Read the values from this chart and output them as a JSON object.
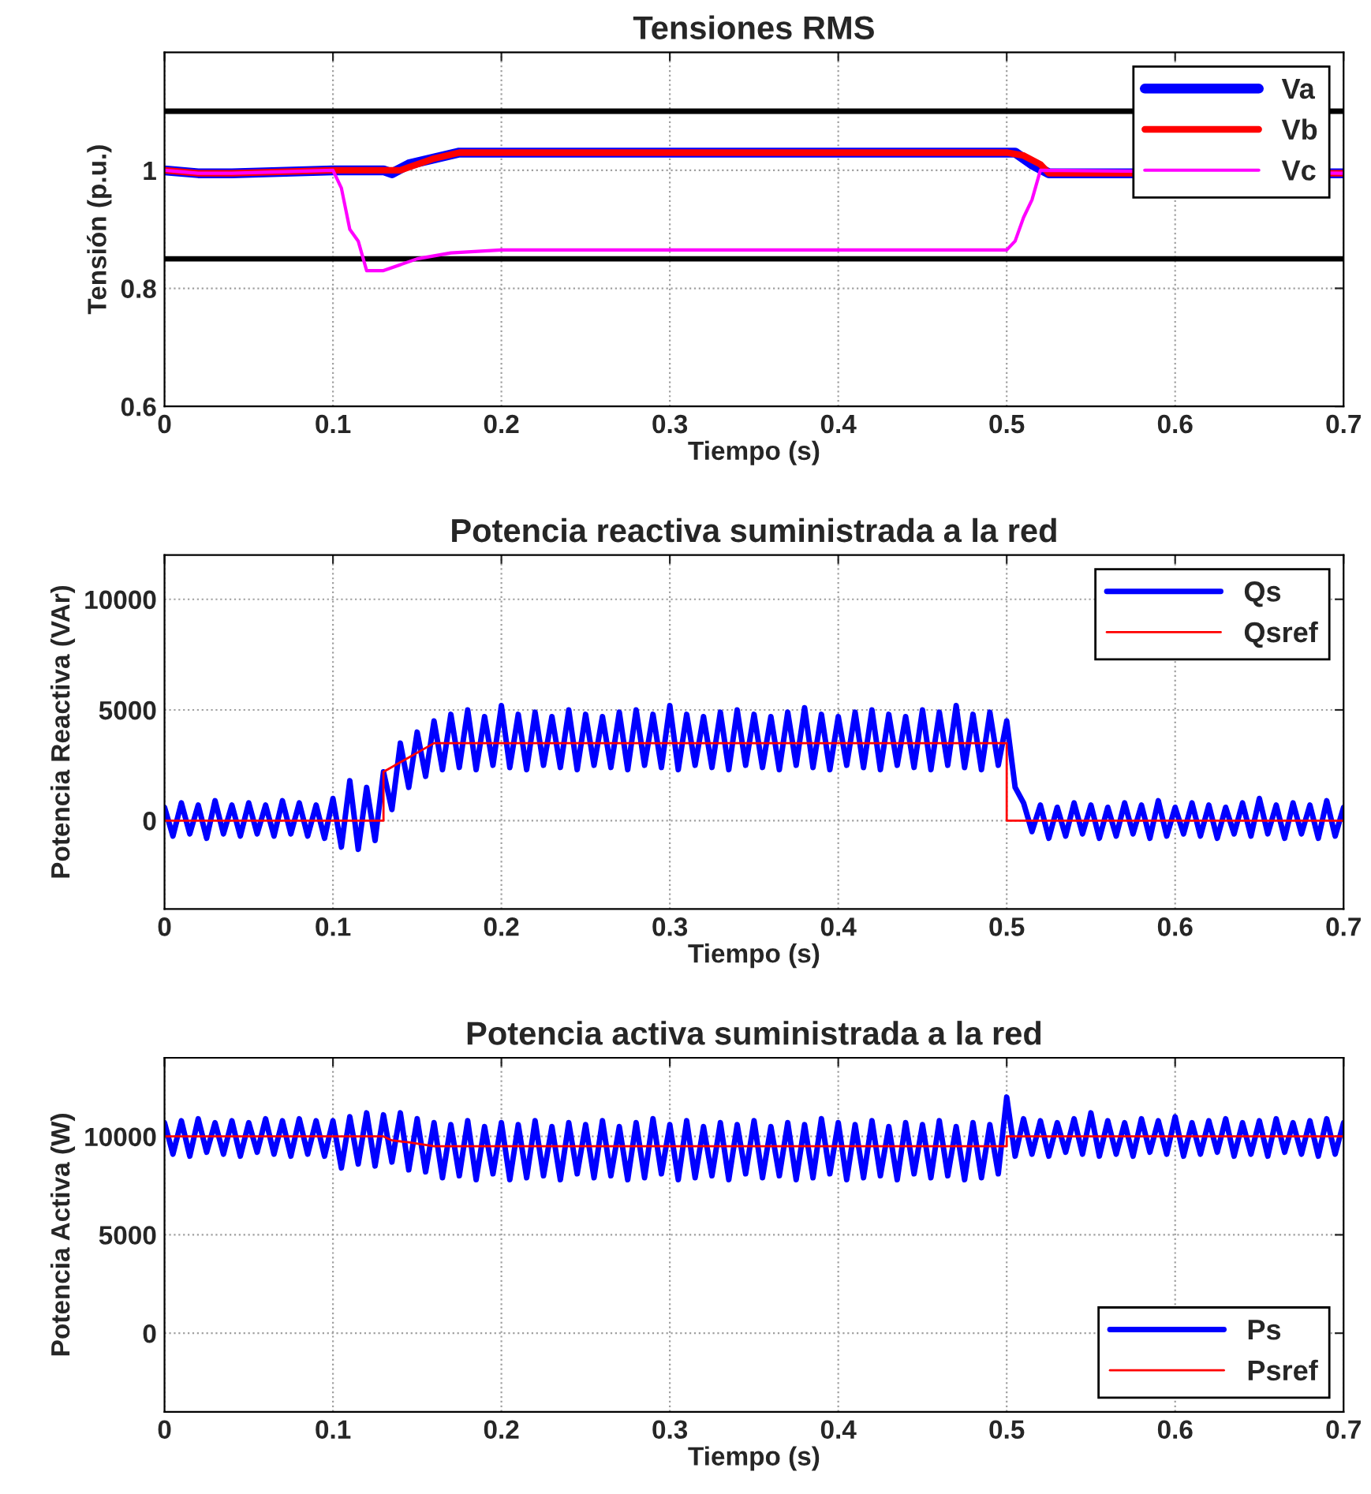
{
  "chart_data": [
    {
      "type": "line",
      "title": "Tensiones RMS",
      "xlabel": "Tiempo (s)",
      "ylabel": "Tensión (p.u.)",
      "xlim": [
        0,
        0.7
      ],
      "xticks": [
        0,
        0.1,
        0.2,
        0.3,
        0.4,
        0.5,
        0.6,
        0.7
      ],
      "ylim": [
        0.6,
        1.2
      ],
      "yticks": [
        0.6,
        0.8,
        1
      ],
      "grid": true,
      "legend": "top right",
      "line_style": "solid",
      "marker": "none",
      "ref_lines": [
        {
          "axis": "y",
          "value": 1.1,
          "color": "#000000"
        },
        {
          "axis": "y",
          "value": 0.85,
          "color": "#000000"
        }
      ],
      "series": [
        {
          "name": "Va",
          "color": "#0000ff",
          "x": [
            0,
            0.02,
            0.04,
            0.1,
            0.13,
            0.135,
            0.145,
            0.16,
            0.175,
            0.5,
            0.505,
            0.515,
            0.525,
            0.7
          ],
          "values": [
            1.0,
            0.995,
            0.995,
            1.0,
            1.0,
            0.995,
            1.01,
            1.02,
            1.03,
            1.03,
            1.03,
            1.01,
            0.995,
            0.995
          ]
        },
        {
          "name": "Vb",
          "color": "#ff0000",
          "x": [
            0,
            0.02,
            0.04,
            0.1,
            0.13,
            0.14,
            0.15,
            0.16,
            0.175,
            0.5,
            0.51,
            0.52,
            0.525,
            0.7
          ],
          "values": [
            1.0,
            0.995,
            0.995,
            1.0,
            1.0,
            1.0,
            1.01,
            1.02,
            1.03,
            1.03,
            1.025,
            1.01,
            0.995,
            0.995
          ]
        },
        {
          "name": "Vc",
          "color": "#ff00ff",
          "x": [
            0,
            0.02,
            0.04,
            0.1,
            0.105,
            0.11,
            0.115,
            0.12,
            0.13,
            0.15,
            0.17,
            0.2,
            0.5,
            0.505,
            0.51,
            0.515,
            0.52,
            0.7
          ],
          "values": [
            1.0,
            0.995,
            0.995,
            1.0,
            0.97,
            0.9,
            0.88,
            0.83,
            0.83,
            0.85,
            0.86,
            0.865,
            0.865,
            0.88,
            0.92,
            0.95,
            1.0,
            0.995
          ]
        }
      ]
    },
    {
      "type": "line",
      "title": "Potencia reactiva suministrada a la red",
      "xlabel": "Tiempo (s)",
      "ylabel": "Potencia Reactiva (VAr)",
      "xlim": [
        0,
        0.7
      ],
      "xticks": [
        0,
        0.1,
        0.2,
        0.3,
        0.4,
        0.5,
        0.6,
        0.7
      ],
      "ylim": [
        -4000,
        12000
      ],
      "yticks": [
        0,
        5000,
        10000
      ],
      "grid": true,
      "legend": "top right",
      "line_style": "solid",
      "marker": "none",
      "series": [
        {
          "name": "Qs",
          "color": "#0000ff",
          "x": [
            0,
            0.005,
            0.01,
            0.015,
            0.02,
            0.025,
            0.03,
            0.035,
            0.04,
            0.045,
            0.05,
            0.055,
            0.06,
            0.065,
            0.07,
            0.075,
            0.08,
            0.085,
            0.09,
            0.095,
            0.1,
            0.105,
            0.11,
            0.115,
            0.12,
            0.125,
            0.13,
            0.135,
            0.14,
            0.145,
            0.15,
            0.155,
            0.16,
            0.165,
            0.17,
            0.175,
            0.18,
            0.185,
            0.19,
            0.195,
            0.2,
            0.205,
            0.21,
            0.215,
            0.22,
            0.225,
            0.23,
            0.235,
            0.24,
            0.245,
            0.25,
            0.255,
            0.26,
            0.265,
            0.27,
            0.275,
            0.28,
            0.285,
            0.29,
            0.295,
            0.3,
            0.305,
            0.31,
            0.315,
            0.32,
            0.325,
            0.33,
            0.335,
            0.34,
            0.345,
            0.35,
            0.355,
            0.36,
            0.365,
            0.37,
            0.375,
            0.38,
            0.385,
            0.39,
            0.395,
            0.4,
            0.405,
            0.41,
            0.415,
            0.42,
            0.425,
            0.43,
            0.435,
            0.44,
            0.445,
            0.45,
            0.455,
            0.46,
            0.465,
            0.47,
            0.475,
            0.48,
            0.485,
            0.49,
            0.495,
            0.5,
            0.505,
            0.51,
            0.515,
            0.52,
            0.525,
            0.53,
            0.535,
            0.54,
            0.545,
            0.55,
            0.555,
            0.56,
            0.565,
            0.57,
            0.575,
            0.58,
            0.585,
            0.59,
            0.595,
            0.6,
            0.605,
            0.61,
            0.615,
            0.62,
            0.625,
            0.63,
            0.635,
            0.64,
            0.645,
            0.65,
            0.655,
            0.66,
            0.665,
            0.67,
            0.675,
            0.68,
            0.685,
            0.69,
            0.695,
            0.7
          ],
          "values": [
            600,
            -700,
            800,
            -600,
            700,
            -800,
            900,
            -600,
            700,
            -700,
            800,
            -600,
            700,
            -700,
            900,
            -600,
            800,
            -700,
            700,
            -800,
            1000,
            -1200,
            1800,
            -1300,
            1500,
            -900,
            2200,
            500,
            3500,
            1500,
            4000,
            2000,
            4500,
            2300,
            4800,
            2400,
            5000,
            2300,
            4700,
            2500,
            5200,
            2400,
            4800,
            2300,
            4900,
            2500,
            4700,
            2400,
            5000,
            2300,
            4800,
            2500,
            4700,
            2400,
            4900,
            2300,
            5000,
            2500,
            4800,
            2400,
            5200,
            2300,
            4800,
            2500,
            4700,
            2400,
            4900,
            2300,
            5000,
            2500,
            4800,
            2400,
            4700,
            2300,
            4900,
            2500,
            5100,
            2400,
            4800,
            2300,
            4700,
            2500,
            4900,
            2400,
            5000,
            2300,
            4800,
            2500,
            4700,
            2400,
            5000,
            2300,
            4900,
            2500,
            5200,
            2400,
            4800,
            2300,
            4900,
            2500,
            4500,
            1500,
            800,
            -500,
            700,
            -800,
            600,
            -700,
            800,
            -600,
            700,
            -800,
            600,
            -700,
            800,
            -600,
            700,
            -800,
            900,
            -700,
            600,
            -600,
            800,
            -700,
            700,
            -800,
            600,
            -600,
            800,
            -700,
            1000,
            -600,
            700,
            -800,
            800,
            -600,
            700,
            -800,
            900,
            -700,
            600
          ]
        },
        {
          "name": "Qsref",
          "color": "#ff0000",
          "x": [
            0,
            0.13,
            0.13,
            0.16,
            0.5,
            0.5,
            0.7
          ],
          "values": [
            0,
            0,
            2200,
            3500,
            3500,
            0,
            0
          ]
        }
      ]
    },
    {
      "type": "line",
      "title": "Potencia activa suministrada a la red",
      "xlabel": "Tiempo (s)",
      "ylabel": "Potencia Activa (W)",
      "xlim": [
        0,
        0.7
      ],
      "xticks": [
        0,
        0.1,
        0.2,
        0.3,
        0.4,
        0.5,
        0.6,
        0.7
      ],
      "ylim": [
        -4000,
        14000
      ],
      "yticks": [
        0,
        5000,
        10000
      ],
      "grid": true,
      "legend": "bottom right",
      "line_style": "solid",
      "marker": "none",
      "series": [
        {
          "name": "Ps",
          "color": "#0000ff",
          "x": [
            0,
            0.005,
            0.01,
            0.015,
            0.02,
            0.025,
            0.03,
            0.035,
            0.04,
            0.045,
            0.05,
            0.055,
            0.06,
            0.065,
            0.07,
            0.075,
            0.08,
            0.085,
            0.09,
            0.095,
            0.1,
            0.105,
            0.11,
            0.115,
            0.12,
            0.125,
            0.13,
            0.135,
            0.14,
            0.145,
            0.15,
            0.155,
            0.16,
            0.165,
            0.17,
            0.175,
            0.18,
            0.185,
            0.19,
            0.195,
            0.2,
            0.205,
            0.21,
            0.215,
            0.22,
            0.225,
            0.23,
            0.235,
            0.24,
            0.245,
            0.25,
            0.255,
            0.26,
            0.265,
            0.27,
            0.275,
            0.28,
            0.285,
            0.29,
            0.295,
            0.3,
            0.305,
            0.31,
            0.315,
            0.32,
            0.325,
            0.33,
            0.335,
            0.34,
            0.345,
            0.35,
            0.355,
            0.36,
            0.365,
            0.37,
            0.375,
            0.38,
            0.385,
            0.39,
            0.395,
            0.4,
            0.405,
            0.41,
            0.415,
            0.42,
            0.425,
            0.43,
            0.435,
            0.44,
            0.445,
            0.45,
            0.455,
            0.46,
            0.465,
            0.47,
            0.475,
            0.48,
            0.485,
            0.49,
            0.495,
            0.5,
            0.505,
            0.51,
            0.515,
            0.52,
            0.525,
            0.53,
            0.535,
            0.54,
            0.545,
            0.55,
            0.555,
            0.56,
            0.565,
            0.57,
            0.575,
            0.58,
            0.585,
            0.59,
            0.595,
            0.6,
            0.605,
            0.61,
            0.615,
            0.62,
            0.625,
            0.63,
            0.635,
            0.64,
            0.645,
            0.65,
            0.655,
            0.66,
            0.665,
            0.67,
            0.675,
            0.68,
            0.685,
            0.69,
            0.695,
            0.7
          ],
          "values": [
            10700,
            9100,
            10800,
            9000,
            10900,
            9200,
            10700,
            9100,
            10800,
            9000,
            10700,
            9200,
            10900,
            9100,
            10800,
            9000,
            10900,
            9100,
            10800,
            9000,
            10800,
            8400,
            11000,
            8600,
            11200,
            8500,
            11100,
            8700,
            11200,
            8300,
            10900,
            8200,
            10700,
            7900,
            10600,
            8000,
            10800,
            7800,
            10500,
            8100,
            10700,
            7800,
            10600,
            7900,
            10800,
            8000,
            10500,
            7800,
            10700,
            8100,
            10600,
            7900,
            10800,
            8000,
            10500,
            7800,
            10700,
            7900,
            10900,
            8100,
            10600,
            7800,
            10800,
            7900,
            10500,
            8000,
            10700,
            7800,
            10600,
            8100,
            10800,
            7900,
            10500,
            8000,
            10700,
            7800,
            10600,
            7900,
            10900,
            8100,
            10700,
            7800,
            10600,
            7900,
            10800,
            8000,
            10500,
            7800,
            10700,
            8100,
            10600,
            7900,
            10800,
            8000,
            10500,
            7800,
            10700,
            7900,
            10600,
            8100,
            12000,
            9000,
            10900,
            9100,
            10800,
            9000,
            10700,
            9200,
            10900,
            9100,
            11200,
            9000,
            10800,
            9100,
            10700,
            9000,
            10900,
            9200,
            10800,
            9100,
            11000,
            9000,
            10700,
            9100,
            10800,
            9200,
            10900,
            9000,
            10700,
            9100,
            10800,
            9000,
            10900,
            9200,
            10700,
            9100,
            10800,
            9000,
            10900,
            9100,
            10700
          ]
        },
        {
          "name": "Psref",
          "color": "#ff0000",
          "x": [
            0,
            0.13,
            0.135,
            0.145,
            0.16,
            0.5,
            0.5,
            0.7
          ],
          "values": [
            10000,
            10000,
            9800,
            9700,
            9500,
            9500,
            10000,
            10000
          ]
        }
      ]
    }
  ]
}
